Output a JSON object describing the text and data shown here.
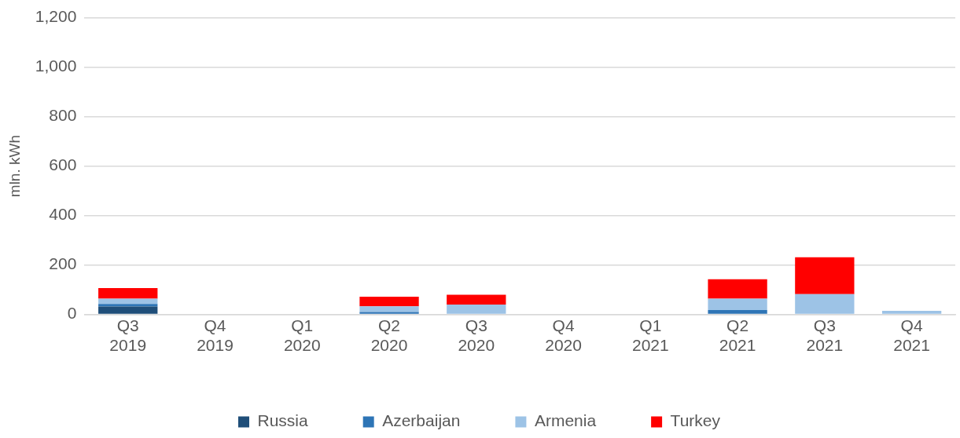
{
  "chart_data": {
    "type": "bar",
    "stacked": true,
    "ylabel": "mln. kWh",
    "categories": [
      "Q3\n2019",
      "Q4\n2019",
      "Q1\n2020",
      "Q2\n2020",
      "Q3\n2020",
      "Q4\n2020",
      "Q1\n2021",
      "Q2\n2021",
      "Q3\n2021",
      "Q4\n2021"
    ],
    "series": [
      {
        "name": "Russia",
        "color": "#1f4e79",
        "values": [
          32,
          0,
          0,
          0,
          0,
          0,
          0,
          0,
          0,
          0
        ]
      },
      {
        "name": "Azerbaijan",
        "color": "#2e75b6",
        "values": [
          10,
          3,
          0,
          10,
          0,
          3,
          0,
          18,
          0,
          0
        ]
      },
      {
        "name": "Armenia",
        "color": "#9dc3e6",
        "values": [
          22,
          0,
          0,
          23,
          40,
          0,
          3,
          46,
          82,
          15
        ]
      },
      {
        "name": "Turkey",
        "color": "#ff0000",
        "values": [
          43,
          0,
          3,
          39,
          40,
          0,
          0,
          78,
          149,
          0
        ]
      }
    ],
    "ylim": [
      0,
      1200
    ],
    "yticks": [
      0,
      200,
      400,
      600,
      800,
      {
        "value": 1000,
        "label": "1,000"
      },
      {
        "value": 1200,
        "label": "1,200"
      }
    ],
    "grid": "y",
    "legend": "bottom"
  }
}
